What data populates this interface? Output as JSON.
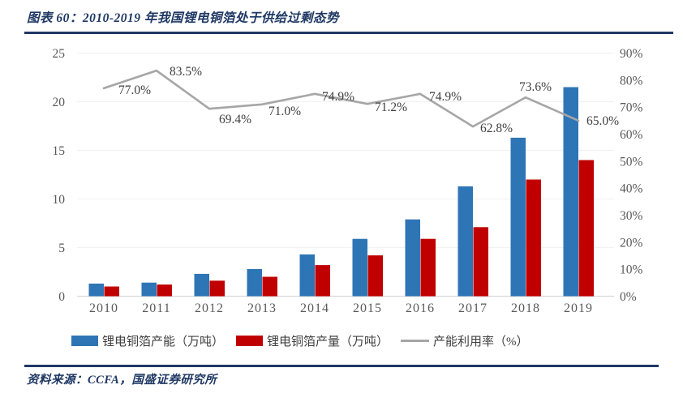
{
  "header": {
    "title": "图表 60：2010-2019 年我国锂电铜箔处于供给过剩态势"
  },
  "footer": {
    "source": "资料来源：CCFA，国盛证券研究所"
  },
  "colors": {
    "accent_navy": "#1F3864",
    "bar_capacity": "#2E75B6",
    "bar_production": "#C00000",
    "line_utilization": "#A6A6A6",
    "axis_text": "#595959",
    "label_text": "#404040",
    "gridline": "#F1F1F1",
    "axis_line": "#D9D9D9"
  },
  "chart_data": {
    "type": "bar",
    "subtype": "grouped-bars-with-line",
    "title": "2010-2019 年我国锂电铜箔处于供给过剩态势",
    "categories": [
      "2010",
      "2011",
      "2012",
      "2013",
      "2014",
      "2015",
      "2016",
      "2017",
      "2018",
      "2019"
    ],
    "series": [
      {
        "name": "锂电铜箔产能（万吨）",
        "type": "bar",
        "axis": "left",
        "color": "#2E75B6",
        "values": [
          1.3,
          1.4,
          2.3,
          2.8,
          4.3,
          5.9,
          7.9,
          11.3,
          16.3,
          21.5
        ]
      },
      {
        "name": "锂电铜箔产量（万吨）",
        "type": "bar",
        "axis": "left",
        "color": "#C00000",
        "values": [
          1.0,
          1.2,
          1.6,
          2.0,
          3.2,
          4.2,
          5.9,
          7.1,
          12.0,
          14.0
        ]
      },
      {
        "name": "产能利用率（%）",
        "type": "line",
        "axis": "right",
        "color": "#A6A6A6",
        "values": [
          77.0,
          83.5,
          69.4,
          71.0,
          74.9,
          71.2,
          74.9,
          62.8,
          73.6,
          65.0
        ],
        "point_labels": [
          "77.0%",
          "83.5%",
          "69.4%",
          "71.0%",
          "74.9%",
          "71.2%",
          "74.9%",
          "62.8%",
          "73.6%",
          "65.0%"
        ]
      }
    ],
    "left_axis": {
      "min": 0,
      "max": 25,
      "step": 5,
      "ticks": [
        "0",
        "5",
        "10",
        "15",
        "20",
        "25"
      ]
    },
    "right_axis": {
      "min": 0,
      "max": 90,
      "step": 10,
      "ticks": [
        "0%",
        "10%",
        "20%",
        "30%",
        "40%",
        "50%",
        "60%",
        "70%",
        "80%",
        "90%"
      ]
    },
    "grid": true,
    "legend_position": "bottom"
  }
}
